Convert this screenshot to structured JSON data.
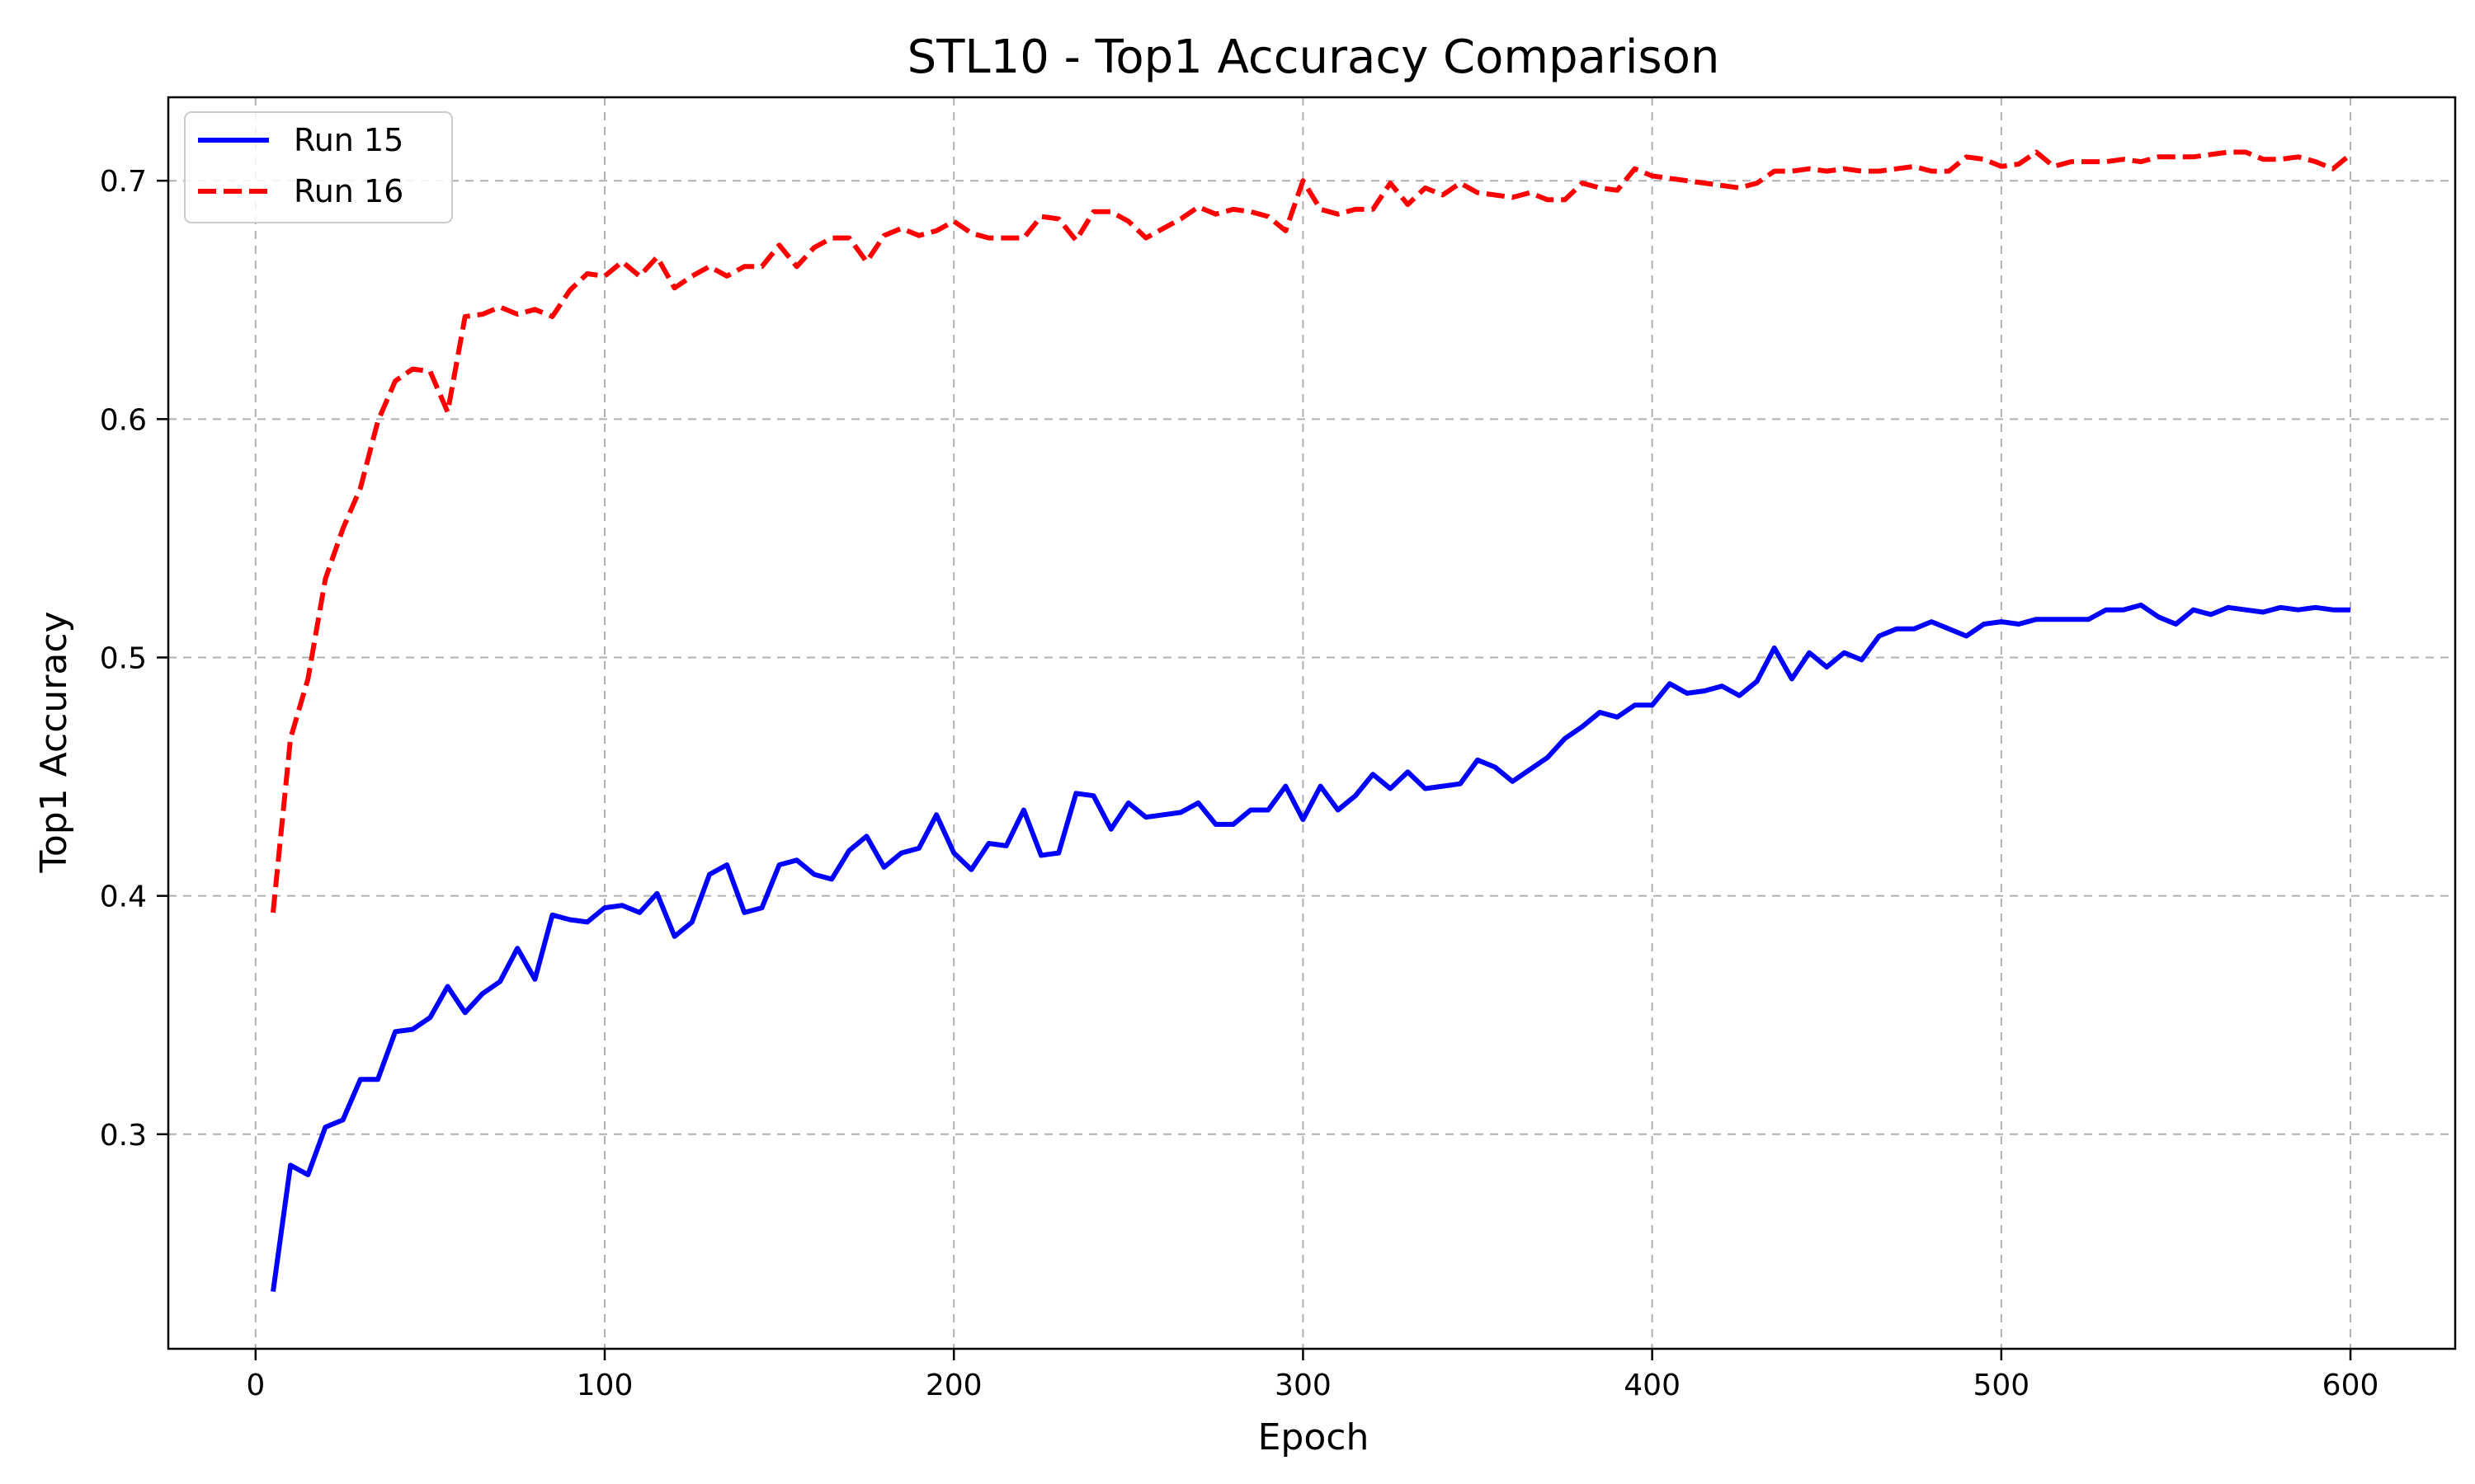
{
  "chart_data": {
    "type": "line",
    "title": "STL10 - Top1 Accuracy Comparison",
    "xlabel": "Epoch",
    "ylabel": "Top1 Accuracy",
    "xlim": [
      -25,
      630
    ],
    "ylim": [
      0.21,
      0.735
    ],
    "xticks": [
      0,
      100,
      200,
      300,
      400,
      500,
      600
    ],
    "yticks": [
      0.3,
      0.4,
      0.5,
      0.6,
      0.7
    ],
    "xtick_labels": [
      "0",
      "100",
      "200",
      "300",
      "400",
      "500",
      "600"
    ],
    "ytick_labels": [
      "0.3",
      "0.4",
      "0.5",
      "0.6",
      "0.7"
    ],
    "grid": true,
    "legend_position": "top-left",
    "x": [
      5,
      10,
      15,
      20,
      25,
      30,
      35,
      40,
      45,
      50,
      55,
      60,
      65,
      70,
      75,
      80,
      85,
      90,
      95,
      100,
      105,
      110,
      115,
      120,
      125,
      130,
      135,
      140,
      145,
      150,
      155,
      160,
      165,
      170,
      175,
      180,
      185,
      190,
      195,
      200,
      205,
      210,
      215,
      220,
      225,
      230,
      235,
      240,
      245,
      250,
      255,
      260,
      265,
      270,
      275,
      280,
      285,
      290,
      295,
      300,
      305,
      310,
      315,
      320,
      325,
      330,
      335,
      340,
      345,
      350,
      355,
      360,
      365,
      370,
      375,
      380,
      385,
      390,
      395,
      400,
      405,
      410,
      415,
      420,
      425,
      430,
      435,
      440,
      445,
      450,
      455,
      460,
      465,
      470,
      475,
      480,
      485,
      490,
      495,
      500,
      505,
      510,
      515,
      520,
      525,
      530,
      535,
      540,
      545,
      550,
      555,
      560,
      565,
      570,
      575,
      580,
      585,
      590,
      595,
      600
    ],
    "series": [
      {
        "name": "Run 15",
        "color": "#0000ff",
        "dash": "solid",
        "values": [
          0.234,
          0.287,
          0.283,
          0.303,
          0.306,
          0.323,
          0.323,
          0.343,
          0.344,
          0.349,
          0.362,
          0.351,
          0.359,
          0.364,
          0.378,
          0.365,
          0.392,
          0.39,
          0.389,
          0.395,
          0.396,
          0.393,
          0.401,
          0.383,
          0.389,
          0.409,
          0.413,
          0.393,
          0.395,
          0.413,
          0.415,
          0.409,
          0.407,
          0.419,
          0.425,
          0.412,
          0.418,
          0.42,
          0.434,
          0.418,
          0.411,
          0.422,
          0.421,
          0.436,
          0.417,
          0.418,
          0.443,
          0.442,
          0.428,
          0.439,
          0.433,
          0.434,
          0.435,
          0.439,
          0.43,
          0.43,
          0.436,
          0.436,
          0.446,
          0.432,
          0.446,
          0.436,
          0.442,
          0.451,
          0.445,
          0.452,
          0.445,
          0.446,
          0.447,
          0.457,
          0.454,
          0.448,
          0.453,
          0.458,
          0.466,
          0.471,
          0.477,
          0.475,
          0.48,
          0.48,
          0.489,
          0.485,
          0.486,
          0.488,
          0.484,
          0.49,
          0.504,
          0.491,
          0.502,
          0.496,
          0.502,
          0.499,
          0.509,
          0.512,
          0.512,
          0.515,
          0.512,
          0.509,
          0.514,
          0.515,
          0.514,
          0.516,
          0.516,
          0.516,
          0.516,
          0.52,
          0.52,
          0.522,
          0.517,
          0.514,
          0.52,
          0.518,
          0.521,
          0.52,
          0.519,
          0.521,
          0.52,
          0.521,
          0.52,
          0.52
        ]
      },
      {
        "name": "Run 16",
        "color": "#ff0000",
        "dash": "dashed",
        "values": [
          0.393,
          0.466,
          0.491,
          0.533,
          0.554,
          0.571,
          0.599,
          0.616,
          0.621,
          0.62,
          0.603,
          0.643,
          0.644,
          0.647,
          0.644,
          0.646,
          0.643,
          0.654,
          0.661,
          0.66,
          0.666,
          0.66,
          0.668,
          0.655,
          0.66,
          0.664,
          0.66,
          0.664,
          0.664,
          0.673,
          0.664,
          0.672,
          0.676,
          0.676,
          0.666,
          0.677,
          0.68,
          0.677,
          0.679,
          0.683,
          0.678,
          0.676,
          0.676,
          0.676,
          0.685,
          0.684,
          0.675,
          0.687,
          0.687,
          0.683,
          0.676,
          0.68,
          0.684,
          0.689,
          0.686,
          0.688,
          0.687,
          0.685,
          0.679,
          0.7,
          0.688,
          0.686,
          0.688,
          0.688,
          0.699,
          0.69,
          0.697,
          0.694,
          0.699,
          0.695,
          0.694,
          0.693,
          0.695,
          0.692,
          0.692,
          0.699,
          0.697,
          0.696,
          0.705,
          0.702,
          0.701,
          0.7,
          0.699,
          0.698,
          0.697,
          0.699,
          0.704,
          0.704,
          0.705,
          0.704,
          0.705,
          0.704,
          0.704,
          0.705,
          0.706,
          0.704,
          0.704,
          0.71,
          0.709,
          0.706,
          0.707,
          0.712,
          0.706,
          0.708,
          0.708,
          0.708,
          0.709,
          0.708,
          0.71,
          0.71,
          0.71,
          0.711,
          0.712,
          0.712,
          0.709,
          0.709,
          0.71,
          0.708,
          0.705,
          0.711
        ]
      }
    ]
  }
}
